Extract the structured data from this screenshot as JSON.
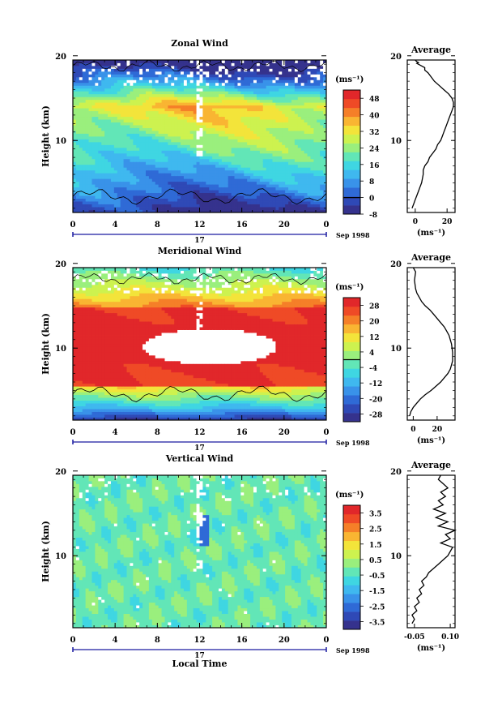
{
  "chart_data": [
    {
      "type": "heatmap",
      "title": "Zonal Wind",
      "xlabel": "",
      "ylabel": "Height (km)",
      "x_ticks": [
        "0",
        "4",
        "8",
        "12",
        "16",
        "20",
        "0"
      ],
      "x_range": [
        0,
        24
      ],
      "y_ticks": [
        "20",
        "10"
      ],
      "y_range": [
        1.5,
        19.5
      ],
      "day_label": "17",
      "date_label": "Sep 1998",
      "colorbar": {
        "unit": "(ms⁻¹)",
        "ticks": [
          "48",
          "40",
          "32",
          "24",
          "16",
          "8",
          "0",
          "-8"
        ],
        "range": [
          -8,
          52
        ],
        "colors": [
          "#35328d",
          "#2f49b6",
          "#2f6ad6",
          "#3992e9",
          "#3fb8ef",
          "#3fd6e2",
          "#62e6b7",
          "#9aef7d",
          "#cdf24f",
          "#f3e43a",
          "#f9b532",
          "#f57f28",
          "#ef4a26",
          "#e1272a"
        ]
      },
      "profile": {
        "title": "Average",
        "xlabel": "(ms⁻¹)",
        "x_ticks": [
          "0",
          "20"
        ],
        "x_range": [
          -5,
          25
        ],
        "y_ticks": [
          "20",
          "10"
        ],
        "y_range": [
          1.5,
          19.5
        ],
        "x": [
          -2,
          -1,
          0,
          1,
          2,
          3,
          4,
          4.5,
          5,
          5,
          6,
          8,
          9,
          11,
          13,
          14,
          16,
          17,
          18,
          19,
          20,
          21,
          22,
          23,
          24,
          24,
          23,
          21,
          18,
          15,
          12,
          10,
          8,
          6,
          6,
          4,
          2,
          1,
          2,
          1,
          0
        ],
        "y": [
          2,
          2.5,
          3,
          3.5,
          4,
          4.5,
          5,
          5.5,
          6,
          6.5,
          7,
          7.5,
          8,
          8.5,
          9,
          9.5,
          10,
          10.5,
          11,
          11.5,
          12,
          12.5,
          13,
          13.5,
          14,
          14.5,
          15,
          15.5,
          16,
          16.5,
          17,
          17.5,
          18,
          18.3,
          18.6,
          18.8,
          19,
          19.1,
          19.2,
          19.3,
          19.5
        ]
      }
    },
    {
      "type": "heatmap",
      "title": "Meridional Wind",
      "xlabel": "",
      "ylabel": "Height (km)",
      "x_ticks": [
        "0",
        "4",
        "8",
        "12",
        "16",
        "20",
        "0"
      ],
      "x_range": [
        0,
        24
      ],
      "y_ticks": [
        "20",
        "10"
      ],
      "y_range": [
        1.5,
        19.5
      ],
      "day_label": "17",
      "date_label": "Sep 1998",
      "colorbar": {
        "unit": "(ms⁻¹)",
        "ticks": [
          "28",
          "20",
          "12",
          "4",
          "-4",
          "-12",
          "-20",
          "-28"
        ],
        "range": [
          -32,
          32
        ],
        "colors": [
          "#35328d",
          "#2f49b6",
          "#2f6ad6",
          "#3992e9",
          "#3fb8ef",
          "#3fd6e2",
          "#62e6b7",
          "#9aef7d",
          "#cdf24f",
          "#f3e43a",
          "#f9b532",
          "#f57f28",
          "#ef4a26",
          "#e1272a"
        ]
      },
      "profile": {
        "title": "Average",
        "xlabel": "(ms⁻¹)",
        "x_ticks": [
          "0",
          "20"
        ],
        "x_range": [
          -5,
          35
        ],
        "y_ticks": [
          "20",
          "10"
        ],
        "y_range": [
          1.5,
          19.5
        ],
        "x": [
          -3,
          -2,
          0,
          3,
          6,
          10,
          15,
          19,
          23,
          26,
          29,
          31,
          32,
          33,
          33,
          32,
          31,
          30,
          28,
          26,
          23,
          20,
          17,
          14,
          10,
          7,
          5,
          3,
          2,
          1,
          2,
          0
        ],
        "y": [
          2,
          2.5,
          3,
          3.5,
          4,
          4.5,
          5,
          5.5,
          6,
          6.5,
          7,
          7.5,
          8,
          8.5,
          9.5,
          10.5,
          11,
          11.5,
          12,
          12.5,
          13,
          13.5,
          14,
          14.5,
          15,
          15.5,
          16,
          16.5,
          17,
          18,
          19,
          19.5
        ]
      }
    },
    {
      "type": "heatmap",
      "title": "Vertical Wind",
      "xlabel": "Local Time",
      "ylabel": "Height (km)",
      "x_ticks": [
        "0",
        "4",
        "8",
        "12",
        "16",
        "20",
        "0"
      ],
      "x_range": [
        0,
        24
      ],
      "y_ticks": [
        "20",
        "10"
      ],
      "y_range": [
        1.5,
        19.5
      ],
      "day_label": "17",
      "date_label": "Sep 1998",
      "colorbar": {
        "unit": "(ms⁻¹)",
        "ticks": [
          "3.5",
          "2.5",
          "1.5",
          "0.5",
          "-0.5",
          "-1.5",
          "-2.5",
          "-3.5"
        ],
        "range": [
          -4,
          4
        ],
        "colors": [
          "#35328d",
          "#2f49b6",
          "#2f6ad6",
          "#3992e9",
          "#3fb8ef",
          "#3fd6e2",
          "#62e6b7",
          "#9aef7d",
          "#cdf24f",
          "#f3e43a",
          "#f9b532",
          "#f57f28",
          "#ef4a26",
          "#e1272a"
        ]
      },
      "profile": {
        "title": "Average",
        "xlabel": "(ms⁻¹)",
        "x_ticks": [
          "-0.05",
          "0.10"
        ],
        "x_range": [
          -0.08,
          0.12
        ],
        "y_ticks": [
          "20",
          "10"
        ],
        "y_range": [
          1.5,
          19.5
        ],
        "x": [
          -0.06,
          -0.05,
          -0.06,
          -0.04,
          -0.05,
          -0.03,
          -0.04,
          -0.02,
          -0.03,
          -0.01,
          -0.02,
          0.0,
          0.01,
          0.03,
          0.05,
          0.07,
          0.09,
          0.11,
          0.06,
          0.1,
          0.08,
          0.12,
          0.05,
          0.09,
          0.04,
          0.08,
          0.03,
          0.07,
          0.05,
          0.08,
          0.06,
          0.09,
          0.07,
          0.05,
          0.06
        ],
        "y": [
          2,
          2.5,
          3,
          3.5,
          4,
          4.5,
          5,
          5.5,
          6,
          6.5,
          7,
          7.5,
          8,
          8.5,
          9,
          9.5,
          10,
          11,
          11.5,
          12,
          12.5,
          13,
          13.5,
          14,
          14.5,
          15,
          15.5,
          16,
          16.5,
          17,
          17.5,
          18,
          18.5,
          19,
          19.5
        ]
      }
    }
  ]
}
